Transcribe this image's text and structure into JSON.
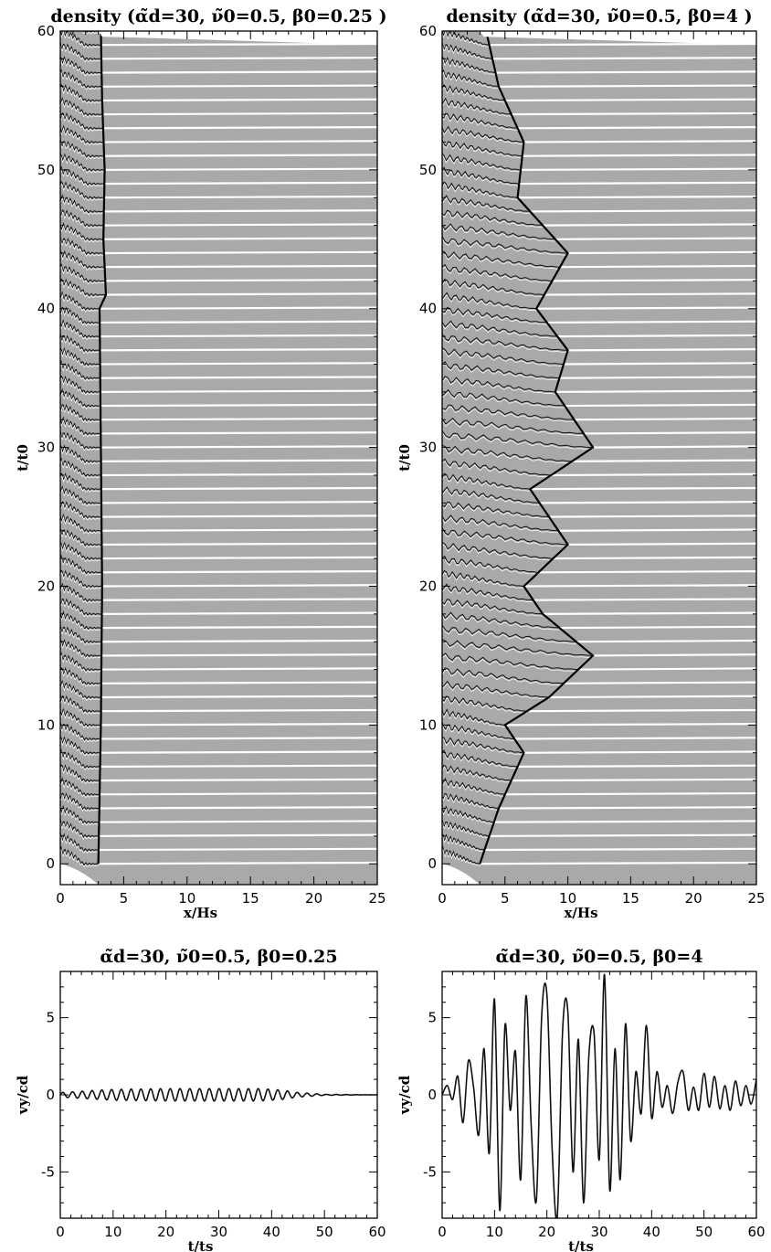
{
  "chart_data": [
    {
      "id": "density_left",
      "type": "line",
      "title": "density (α̃d=30, ν̃0=0.5, β0=0.25 )",
      "xlabel": "x/Hs",
      "ylabel": "t/t0",
      "xlim": [
        0,
        25
      ],
      "ylim": [
        -1.5,
        60
      ],
      "xticks": [
        "0",
        "5",
        "10",
        "15",
        "20",
        "25"
      ],
      "yticks": [
        "0",
        "10",
        "20",
        "30",
        "40",
        "50",
        "60"
      ],
      "series": [
        {
          "x": [
            0,
            1,
            2,
            2.5,
            2.8,
            3.0,
            3.3,
            5,
            25
          ],
          "values": [
            0.6,
            0.5,
            0.3,
            0.15,
            0.05,
            0.01,
            0.0,
            0.0,
            0.0
          ]
        }
      ],
      "front_position": {
        "t": [
          0,
          10,
          20,
          30,
          40,
          41,
          45,
          50,
          55,
          60
        ],
        "x": [
          3.0,
          3.2,
          3.3,
          3.2,
          3.1,
          3.6,
          3.4,
          3.5,
          3.3,
          3.2
        ]
      },
      "stack": "one curve per time step, offset vertically by t/t0"
    },
    {
      "id": "density_right",
      "type": "line",
      "title": "density (α̃d=30, ν̃0=0.5, β0=4 )",
      "xlabel": "x/Hs",
      "ylabel": "t/t0",
      "xlim": [
        0,
        25
      ],
      "ylim": [
        -1.5,
        60
      ],
      "xticks": [
        "0",
        "5",
        "10",
        "15",
        "20",
        "25"
      ],
      "yticks": [
        "0",
        "10",
        "20",
        "30",
        "40",
        "50",
        "60"
      ],
      "series": [
        {
          "x": [
            0,
            2,
            4,
            6,
            8,
            10,
            12,
            14,
            25
          ],
          "values": [
            0.6,
            0.5,
            0.45,
            0.35,
            0.25,
            0.15,
            0.05,
            0.0,
            0.0
          ]
        }
      ],
      "front_position": {
        "t": [
          0,
          4,
          8,
          10,
          12,
          15,
          18,
          20,
          23,
          27,
          30,
          34,
          37,
          40,
          44,
          48,
          52,
          56,
          60
        ],
        "x": [
          3.0,
          4.5,
          6.5,
          5.0,
          8.5,
          12.0,
          8.0,
          6.5,
          10.0,
          7.0,
          12.0,
          9.0,
          10.0,
          7.5,
          10.0,
          6.0,
          6.5,
          4.5,
          3.5
        ]
      },
      "stack": "one curve per time step, offset vertically by t/t0"
    },
    {
      "id": "velocity_left",
      "type": "line",
      "title": "α̃d=30, ν̃0=0.5, β0=0.25",
      "xlabel": "t/ts",
      "ylabel": "vy/cd",
      "xlim": [
        0,
        60
      ],
      "ylim": [
        -8,
        8
      ],
      "xticks": [
        "0",
        "10",
        "20",
        "30",
        "40",
        "50",
        "60"
      ],
      "yticks": [
        "-5",
        "0",
        "5"
      ],
      "series": [
        {
          "x": [
            0,
            10,
            20,
            30,
            38,
            42,
            45,
            50,
            60
          ],
          "values": [
            0.0,
            0.0,
            0.0,
            0.0,
            0.0,
            0.0,
            0.0,
            0.0,
            0.0
          ],
          "amplitude": [
            0.15,
            0.35,
            0.4,
            0.4,
            0.4,
            0.3,
            0.15,
            0.03,
            0.0
          ]
        }
      ]
    },
    {
      "id": "velocity_right",
      "type": "line",
      "title": "α̃d=30, ν̃0=0.5, β0=4",
      "xlabel": "t/ts",
      "ylabel": "vy/cd",
      "xlim": [
        0,
        60
      ],
      "ylim": [
        -8,
        8
      ],
      "xticks": [
        "0",
        "10",
        "20",
        "30",
        "40",
        "50",
        "60"
      ],
      "yticks": [
        "-5",
        "0",
        "5"
      ],
      "series": [
        {
          "x": [
            0,
            1,
            2,
            3,
            4,
            5,
            6,
            7,
            8,
            9,
            10,
            11,
            12,
            13,
            14,
            15,
            16,
            17,
            18,
            19,
            20,
            21,
            22,
            23,
            24,
            25,
            26,
            27,
            28,
            29,
            30,
            31,
            32,
            33,
            34,
            35,
            36,
            37,
            38,
            39,
            40,
            41,
            42,
            43,
            44,
            45,
            46,
            47,
            48,
            49,
            50,
            51,
            52,
            53,
            54,
            55,
            56,
            57,
            58,
            59,
            60
          ],
          "values": [
            0.0,
            0.6,
            -0.3,
            1.2,
            -1.8,
            2.2,
            0.5,
            -2.6,
            3.0,
            -3.8,
            6.2,
            -7.5,
            4.5,
            -1.0,
            2.8,
            -5.5,
            6.4,
            -2.0,
            -6.8,
            5.0,
            6.5,
            -3.5,
            -7.8,
            4.2,
            5.4,
            -5.0,
            3.6,
            -7.0,
            2.4,
            4.0,
            -4.2,
            7.8,
            -6.2,
            3.0,
            -5.5,
            4.6,
            -3.0,
            1.5,
            -1.2,
            4.5,
            -1.5,
            1.5,
            -0.8,
            0.6,
            -1.2,
            0.8,
            1.5,
            -1.0,
            0.5,
            -1.0,
            1.4,
            -0.8,
            1.2,
            -0.9,
            0.6,
            -1.0,
            0.9,
            -0.7,
            0.6,
            -0.6,
            1.0
          ]
        }
      ]
    }
  ]
}
